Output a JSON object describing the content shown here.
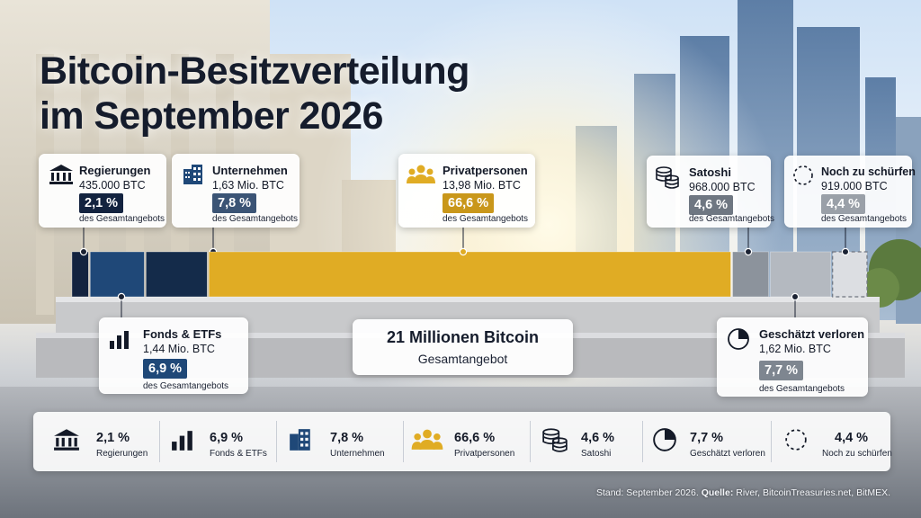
{
  "title_line1": "Bitcoin-Besitzverteilung",
  "title_line2": "im September 2026",
  "subtext": "des Gesamtangebots",
  "total": {
    "title": "21 Millionen Bitcoin",
    "subtitle": "Gesamtangebot"
  },
  "chart_data": {
    "type": "bar",
    "orientation": "horizontal-stacked",
    "total_label": "21 Millionen Bitcoin",
    "categories": [
      "Regierungen",
      "Fonds & ETFs",
      "Unternehmen",
      "Privatpersonen",
      "Satoshi",
      "Geschätzt verloren",
      "Noch zu schürfen"
    ],
    "values": [
      2.1,
      6.9,
      7.8,
      66.6,
      4.6,
      7.7,
      4.4
    ],
    "amounts": [
      "435.000 BTC",
      "1,44 Mio. BTC",
      "1,63 Mio. BTC",
      "13,98 Mio. BTC",
      "968.000 BTC",
      "1,62 Mio. BTC",
      "919.000 BTC"
    ],
    "percent_labels": [
      "2,1 %",
      "6,9 %",
      "7,8 %",
      "66,6 %",
      "4,6 %",
      "7,7 %",
      "4,4 %"
    ],
    "colors": [
      "#13233f",
      "#1f4878",
      "#142b4a",
      "#e0ac24",
      "#8c939c",
      "#b4b9c0",
      "#dcdee2"
    ],
    "unit": "%"
  },
  "icons": [
    "bank-icon",
    "bar-chart-icon",
    "office-building-icon",
    "people-icon",
    "coin-stack-icon",
    "pie-chart-icon",
    "dashed-circle-icon"
  ],
  "footer": {
    "prefix": "Stand: September 2026.",
    "source_label": "Quelle:",
    "source_text": "River, BitcoinTreasuries.net, BitMEX."
  }
}
